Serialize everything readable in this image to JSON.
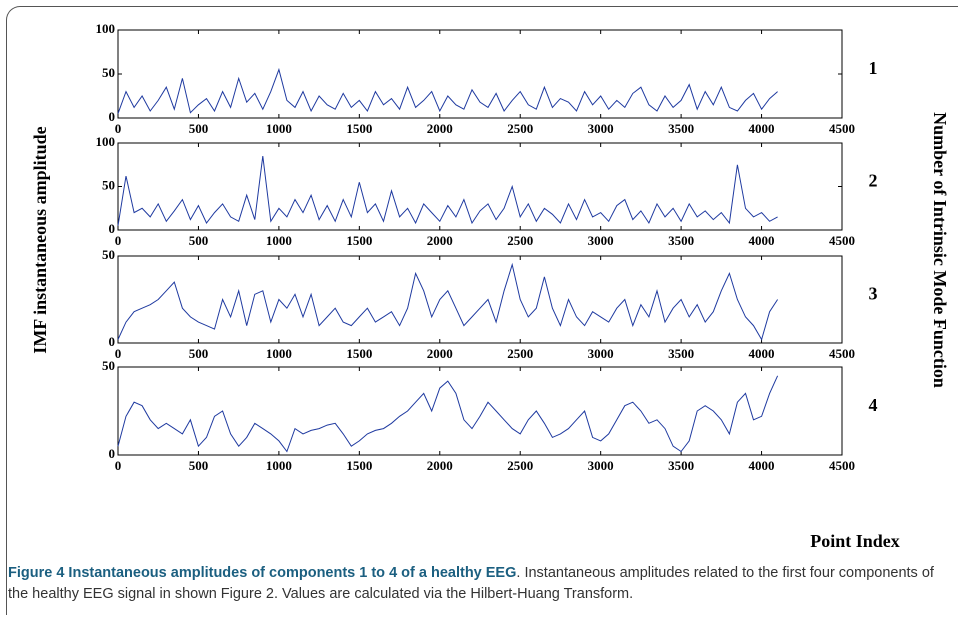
{
  "figure": {
    "ylabel": "IMF instantaneous amplitude",
    "right_label": "Number of Intrinsic Mode Function",
    "xlabel": "Point Index",
    "caption": {
      "title": "Figure 4 Instantaneous amplitudes of components 1 to 4 of a healthy EEG",
      "text": ". Instantaneous amplitudes related to the first four components of the healthy EEG signal in shown Figure 2. Values are calculated via the Hilbert-Huang Transform."
    }
  },
  "chart_data": [
    {
      "type": "line",
      "label": "1",
      "color": "#1f3aa0",
      "xlim": [
        0,
        4500
      ],
      "xticks": [
        0,
        500,
        1000,
        1500,
        2000,
        2500,
        3000,
        3500,
        4000,
        4500
      ],
      "ylim": [
        0,
        100
      ],
      "yticks": [
        0,
        50,
        100
      ],
      "x": [
        0,
        50,
        100,
        150,
        200,
        250,
        300,
        350,
        400,
        450,
        500,
        550,
        600,
        650,
        700,
        750,
        800,
        850,
        900,
        950,
        1000,
        1050,
        1100,
        1150,
        1200,
        1250,
        1300,
        1350,
        1400,
        1450,
        1500,
        1550,
        1600,
        1650,
        1700,
        1750,
        1800,
        1850,
        1900,
        1950,
        2000,
        2050,
        2100,
        2150,
        2200,
        2250,
        2300,
        2350,
        2400,
        2450,
        2500,
        2550,
        2600,
        2650,
        2700,
        2750,
        2800,
        2850,
        2900,
        2950,
        3000,
        3050,
        3100,
        3150,
        3200,
        3250,
        3300,
        3350,
        3400,
        3450,
        3500,
        3550,
        3600,
        3650,
        3700,
        3750,
        3800,
        3850,
        3900,
        3950,
        4000,
        4050,
        4100
      ],
      "values": [
        5,
        30,
        12,
        25,
        8,
        20,
        35,
        10,
        45,
        6,
        15,
        22,
        8,
        30,
        12,
        45,
        18,
        28,
        10,
        30,
        55,
        20,
        12,
        30,
        8,
        25,
        15,
        10,
        28,
        12,
        20,
        8,
        30,
        15,
        22,
        10,
        35,
        12,
        20,
        30,
        8,
        25,
        15,
        10,
        32,
        18,
        12,
        28,
        8,
        20,
        30,
        15,
        10,
        35,
        12,
        22,
        18,
        8,
        30,
        15,
        25,
        10,
        20,
        12,
        28,
        35,
        15,
        8,
        25,
        12,
        20,
        38,
        10,
        30,
        15,
        35,
        12,
        8,
        20,
        28,
        10,
        22,
        30
      ]
    },
    {
      "type": "line",
      "label": "2",
      "color": "#1f3aa0",
      "xlim": [
        0,
        4500
      ],
      "xticks": [
        0,
        500,
        1000,
        1500,
        2000,
        2500,
        3000,
        3500,
        4000,
        4500
      ],
      "ylim": [
        0,
        100
      ],
      "yticks": [
        0,
        50,
        100
      ],
      "x": [
        0,
        50,
        100,
        150,
        200,
        250,
        300,
        350,
        400,
        450,
        500,
        550,
        600,
        650,
        700,
        750,
        800,
        850,
        900,
        950,
        1000,
        1050,
        1100,
        1150,
        1200,
        1250,
        1300,
        1350,
        1400,
        1450,
        1500,
        1550,
        1600,
        1650,
        1700,
        1750,
        1800,
        1850,
        1900,
        1950,
        2000,
        2050,
        2100,
        2150,
        2200,
        2250,
        2300,
        2350,
        2400,
        2450,
        2500,
        2550,
        2600,
        2650,
        2700,
        2750,
        2800,
        2850,
        2900,
        2950,
        3000,
        3050,
        3100,
        3150,
        3200,
        3250,
        3300,
        3350,
        3400,
        3450,
        3500,
        3550,
        3600,
        3650,
        3700,
        3750,
        3800,
        3850,
        3900,
        3950,
        4000,
        4050,
        4100
      ],
      "values": [
        5,
        62,
        20,
        25,
        15,
        30,
        10,
        22,
        35,
        12,
        28,
        8,
        20,
        30,
        15,
        10,
        40,
        12,
        85,
        10,
        25,
        15,
        35,
        20,
        40,
        12,
        28,
        10,
        35,
        15,
        55,
        20,
        30,
        10,
        45,
        15,
        25,
        8,
        30,
        20,
        10,
        28,
        15,
        35,
        8,
        22,
        30,
        12,
        25,
        50,
        15,
        30,
        10,
        25,
        18,
        8,
        30,
        12,
        35,
        15,
        20,
        10,
        28,
        35,
        12,
        22,
        8,
        30,
        15,
        25,
        10,
        30,
        15,
        22,
        12,
        20,
        8,
        75,
        25,
        15,
        20,
        10,
        15
      ]
    },
    {
      "type": "line",
      "label": "3",
      "color": "#1f3aa0",
      "xlim": [
        0,
        4500
      ],
      "xticks": [
        0,
        500,
        1000,
        1500,
        2000,
        2500,
        3000,
        3500,
        4000,
        4500
      ],
      "ylim": [
        0,
        50
      ],
      "yticks": [
        0,
        50
      ],
      "x": [
        0,
        50,
        100,
        150,
        200,
        250,
        300,
        350,
        400,
        450,
        500,
        550,
        600,
        650,
        700,
        750,
        800,
        850,
        900,
        950,
        1000,
        1050,
        1100,
        1150,
        1200,
        1250,
        1300,
        1350,
        1400,
        1450,
        1500,
        1550,
        1600,
        1650,
        1700,
        1750,
        1800,
        1850,
        1900,
        1950,
        2000,
        2050,
        2100,
        2150,
        2200,
        2250,
        2300,
        2350,
        2400,
        2450,
        2500,
        2550,
        2600,
        2650,
        2700,
        2750,
        2800,
        2850,
        2900,
        2950,
        3000,
        3050,
        3100,
        3150,
        3200,
        3250,
        3300,
        3350,
        3400,
        3450,
        3500,
        3550,
        3600,
        3650,
        3700,
        3750,
        3800,
        3850,
        3900,
        3950,
        4000,
        4050,
        4100
      ],
      "values": [
        2,
        12,
        18,
        20,
        22,
        25,
        30,
        35,
        20,
        15,
        12,
        10,
        8,
        25,
        15,
        30,
        10,
        28,
        30,
        12,
        25,
        20,
        28,
        15,
        28,
        10,
        15,
        20,
        12,
        10,
        15,
        20,
        12,
        15,
        18,
        10,
        20,
        40,
        30,
        15,
        25,
        30,
        20,
        10,
        15,
        20,
        25,
        12,
        30,
        45,
        25,
        15,
        20,
        38,
        20,
        10,
        25,
        15,
        10,
        18,
        15,
        12,
        20,
        25,
        10,
        22,
        15,
        30,
        12,
        20,
        25,
        15,
        22,
        12,
        18,
        30,
        40,
        25,
        15,
        10,
        2,
        18,
        25
      ]
    },
    {
      "type": "line",
      "label": "4",
      "color": "#1f3aa0",
      "xlim": [
        0,
        4500
      ],
      "xticks": [
        0,
        500,
        1000,
        1500,
        2000,
        2500,
        3000,
        3500,
        4000,
        4500
      ],
      "ylim": [
        0,
        50
      ],
      "yticks": [
        0,
        50
      ],
      "x": [
        0,
        50,
        100,
        150,
        200,
        250,
        300,
        350,
        400,
        450,
        500,
        550,
        600,
        650,
        700,
        750,
        800,
        850,
        900,
        950,
        1000,
        1050,
        1100,
        1150,
        1200,
        1250,
        1300,
        1350,
        1400,
        1450,
        1500,
        1550,
        1600,
        1650,
        1700,
        1750,
        1800,
        1850,
        1900,
        1950,
        2000,
        2050,
        2100,
        2150,
        2200,
        2250,
        2300,
        2350,
        2400,
        2450,
        2500,
        2550,
        2600,
        2650,
        2700,
        2750,
        2800,
        2850,
        2900,
        2950,
        3000,
        3050,
        3100,
        3150,
        3200,
        3250,
        3300,
        3350,
        3400,
        3450,
        3500,
        3550,
        3600,
        3650,
        3700,
        3750,
        3800,
        3850,
        3900,
        3950,
        4000,
        4050,
        4100
      ],
      "values": [
        5,
        22,
        30,
        28,
        20,
        15,
        18,
        15,
        12,
        20,
        5,
        10,
        22,
        25,
        12,
        5,
        10,
        18,
        15,
        12,
        8,
        2,
        15,
        12,
        14,
        15,
        17,
        18,
        12,
        5,
        8,
        12,
        14,
        15,
        18,
        22,
        25,
        30,
        35,
        25,
        38,
        42,
        35,
        20,
        15,
        22,
        30,
        25,
        20,
        15,
        12,
        20,
        25,
        18,
        10,
        12,
        15,
        20,
        25,
        10,
        8,
        12,
        20,
        28,
        30,
        25,
        18,
        20,
        15,
        5,
        2,
        8,
        25,
        28,
        25,
        20,
        12,
        30,
        35,
        20,
        22,
        35,
        45
      ]
    }
  ]
}
